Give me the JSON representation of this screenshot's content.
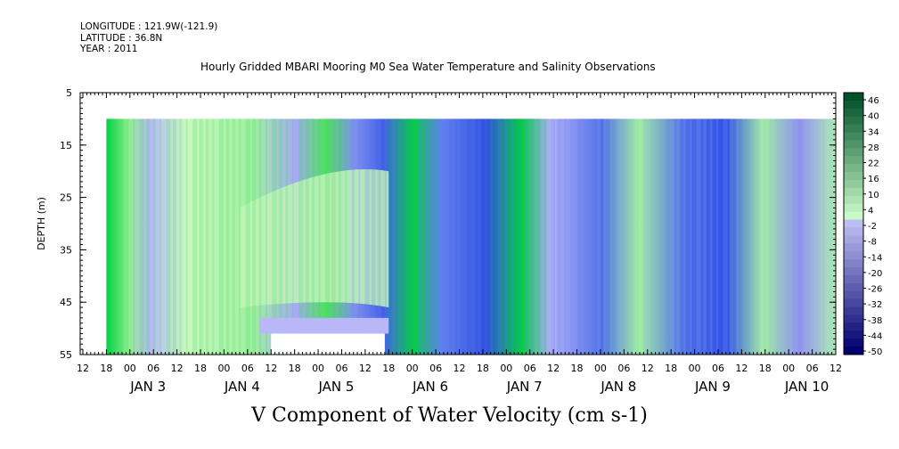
{
  "header": {
    "longitude": "LONGITUDE : 121.9W(-121.9)",
    "latitude": "LATITUDE : 36.8N",
    "year": "YEAR : 2011"
  },
  "chart_data": {
    "type": "heatmap",
    "title": "Hourly Gridded MBARI Mooring M0 Sea Water Temperature and Salinity Observations",
    "xlabel": "V Component of Water Velocity (cm s-1)",
    "ylabel": "DEPTH (m)",
    "y_ticks": [
      "5",
      "15",
      "25",
      "35",
      "45",
      "55"
    ],
    "ylim": [
      55,
      5
    ],
    "hour_ticks": [
      "12",
      "18",
      "00",
      "06",
      "12",
      "18",
      "00",
      "06",
      "12",
      "18",
      "00",
      "06",
      "12",
      "18",
      "00",
      "06",
      "12",
      "18",
      "00",
      "06",
      "12",
      "18",
      "00",
      "06",
      "12",
      "18",
      "00",
      "06",
      "12",
      "18",
      "00",
      "06",
      "12"
    ],
    "day_labels": [
      "JAN  3",
      "JAN  4",
      "JAN  5",
      "JAN  6",
      "JAN  7",
      "JAN  8",
      "JAN  9",
      "JAN 10"
    ],
    "data_start": "JAN 2 18:00",
    "data_end": "JAN 10 12:00",
    "data_depth_top": 10,
    "data_depth_bottom": 55,
    "colorbar_labels": [
      "46",
      "40",
      "34",
      "28",
      "22",
      "16",
      "10",
      "4",
      "-2",
      "-8",
      "-14",
      "-20",
      "-26",
      "-32",
      "-38",
      "-44",
      "-50"
    ],
    "colors": {
      "positive_strong": "#00c030",
      "positive_weak": "#a8f0a8",
      "negative_weak": "#b8b8f8",
      "negative_strong": "#3050e8"
    }
  }
}
